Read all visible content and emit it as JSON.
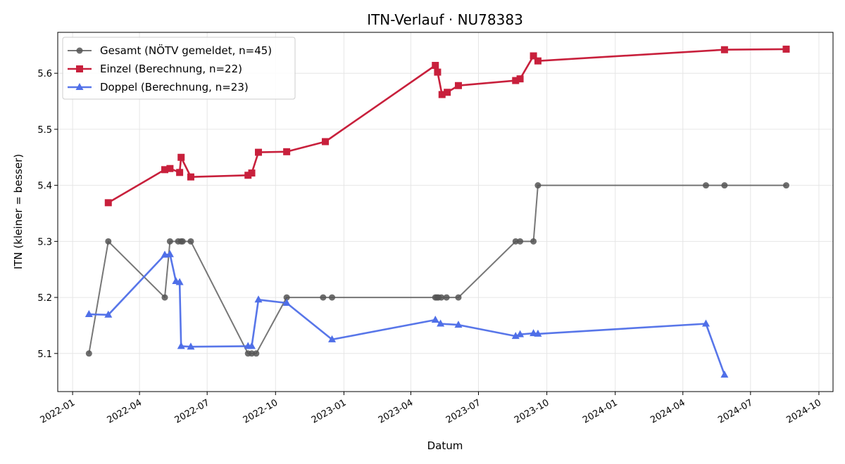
{
  "chart_data": {
    "type": "line",
    "title": "ITN-Verlauf · NU78383",
    "xlabel": "Datum",
    "ylabel": "ITN  (kleiner = besser)",
    "x_type": "date",
    "xlim": [
      "2021-12-12",
      "2024-10-20"
    ],
    "ylim": [
      5.032,
      5.673
    ],
    "x_ticks": [
      "2022-01-01",
      "2022-04-01",
      "2022-07-01",
      "2022-10-01",
      "2023-01-01",
      "2023-04-01",
      "2023-07-01",
      "2023-10-01",
      "2024-01-01",
      "2024-04-01",
      "2024-07-01",
      "2024-10-01"
    ],
    "x_tick_labels": [
      "2022-01",
      "2022-04",
      "2022-07",
      "2022-10",
      "2023-01",
      "2023-04",
      "2023-07",
      "2023-10",
      "2024-01",
      "2024-04",
      "2024-07",
      "2024-10"
    ],
    "y_ticks": [
      5.1,
      5.2,
      5.3,
      5.4,
      5.5,
      5.6
    ],
    "y_tick_labels": [
      "5.1",
      "5.2",
      "5.3",
      "5.4",
      "5.5",
      "5.6"
    ],
    "grid": true,
    "legend_position": "top-left",
    "series": [
      {
        "name": "Gesamt (NÖTV gemeldet, n=45)",
        "color": "#555555",
        "marker": "circle",
        "x": [
          "2022-01-23",
          "2022-02-18",
          "2022-05-05",
          "2022-05-12",
          "2022-05-23",
          "2022-05-27",
          "2022-05-29",
          "2022-06-09",
          "2022-08-25",
          "2022-08-30",
          "2022-09-05",
          "2022-10-16",
          "2022-12-04",
          "2022-12-16",
          "2023-05-04",
          "2023-05-06",
          "2023-05-08",
          "2023-05-12",
          "2023-05-19",
          "2023-06-04",
          "2023-08-20",
          "2023-08-26",
          "2023-09-13",
          "2023-09-19",
          "2024-05-02",
          "2024-05-27",
          "2024-08-18"
        ],
        "y": [
          5.1,
          5.3,
          5.2,
          5.3,
          5.3,
          5.3,
          5.3,
          5.3,
          5.1,
          5.1,
          5.1,
          5.2,
          5.2,
          5.2,
          5.2,
          5.2,
          5.2,
          5.2,
          5.2,
          5.2,
          5.3,
          5.3,
          5.3,
          5.4,
          5.4,
          5.4,
          5.4
        ]
      },
      {
        "name": "Einzel (Berechnung, n=22)",
        "color": "#c8203c",
        "marker": "square",
        "x": [
          "2022-02-18",
          "2022-05-05",
          "2022-05-12",
          "2022-05-25",
          "2022-05-27",
          "2022-06-09",
          "2022-08-25",
          "2022-08-30",
          "2022-09-08",
          "2022-10-16",
          "2022-12-07",
          "2023-05-04",
          "2023-05-07",
          "2023-05-13",
          "2023-05-20",
          "2023-06-04",
          "2023-08-20",
          "2023-08-26",
          "2023-09-13",
          "2023-09-19",
          "2024-05-27",
          "2024-08-18"
        ],
        "y": [
          5.369,
          5.428,
          5.43,
          5.423,
          5.45,
          5.415,
          5.418,
          5.422,
          5.459,
          5.46,
          5.478,
          5.614,
          5.602,
          5.562,
          5.566,
          5.578,
          5.587,
          5.59,
          5.631,
          5.622,
          5.642,
          5.643
        ]
      },
      {
        "name": "Doppel (Berechnung, n=23)",
        "color": "#4f6fe8",
        "marker": "triangle",
        "x": [
          "2022-01-23",
          "2022-02-18",
          "2022-05-05",
          "2022-05-12",
          "2022-05-20",
          "2022-05-25",
          "2022-05-27",
          "2022-06-09",
          "2022-08-25",
          "2022-08-30",
          "2022-09-08",
          "2022-10-16",
          "2022-12-16",
          "2023-05-04",
          "2023-05-11",
          "2023-06-04",
          "2023-08-20",
          "2023-08-26",
          "2023-09-13",
          "2023-09-19",
          "2024-05-02",
          "2024-05-27"
        ],
        "y": [
          5.17,
          5.169,
          5.276,
          5.277,
          5.229,
          5.227,
          5.113,
          5.112,
          5.113,
          5.113,
          5.196,
          5.19,
          5.125,
          5.16,
          5.153,
          5.151,
          5.131,
          5.134,
          5.136,
          5.135,
          5.153,
          5.062
        ]
      }
    ]
  }
}
